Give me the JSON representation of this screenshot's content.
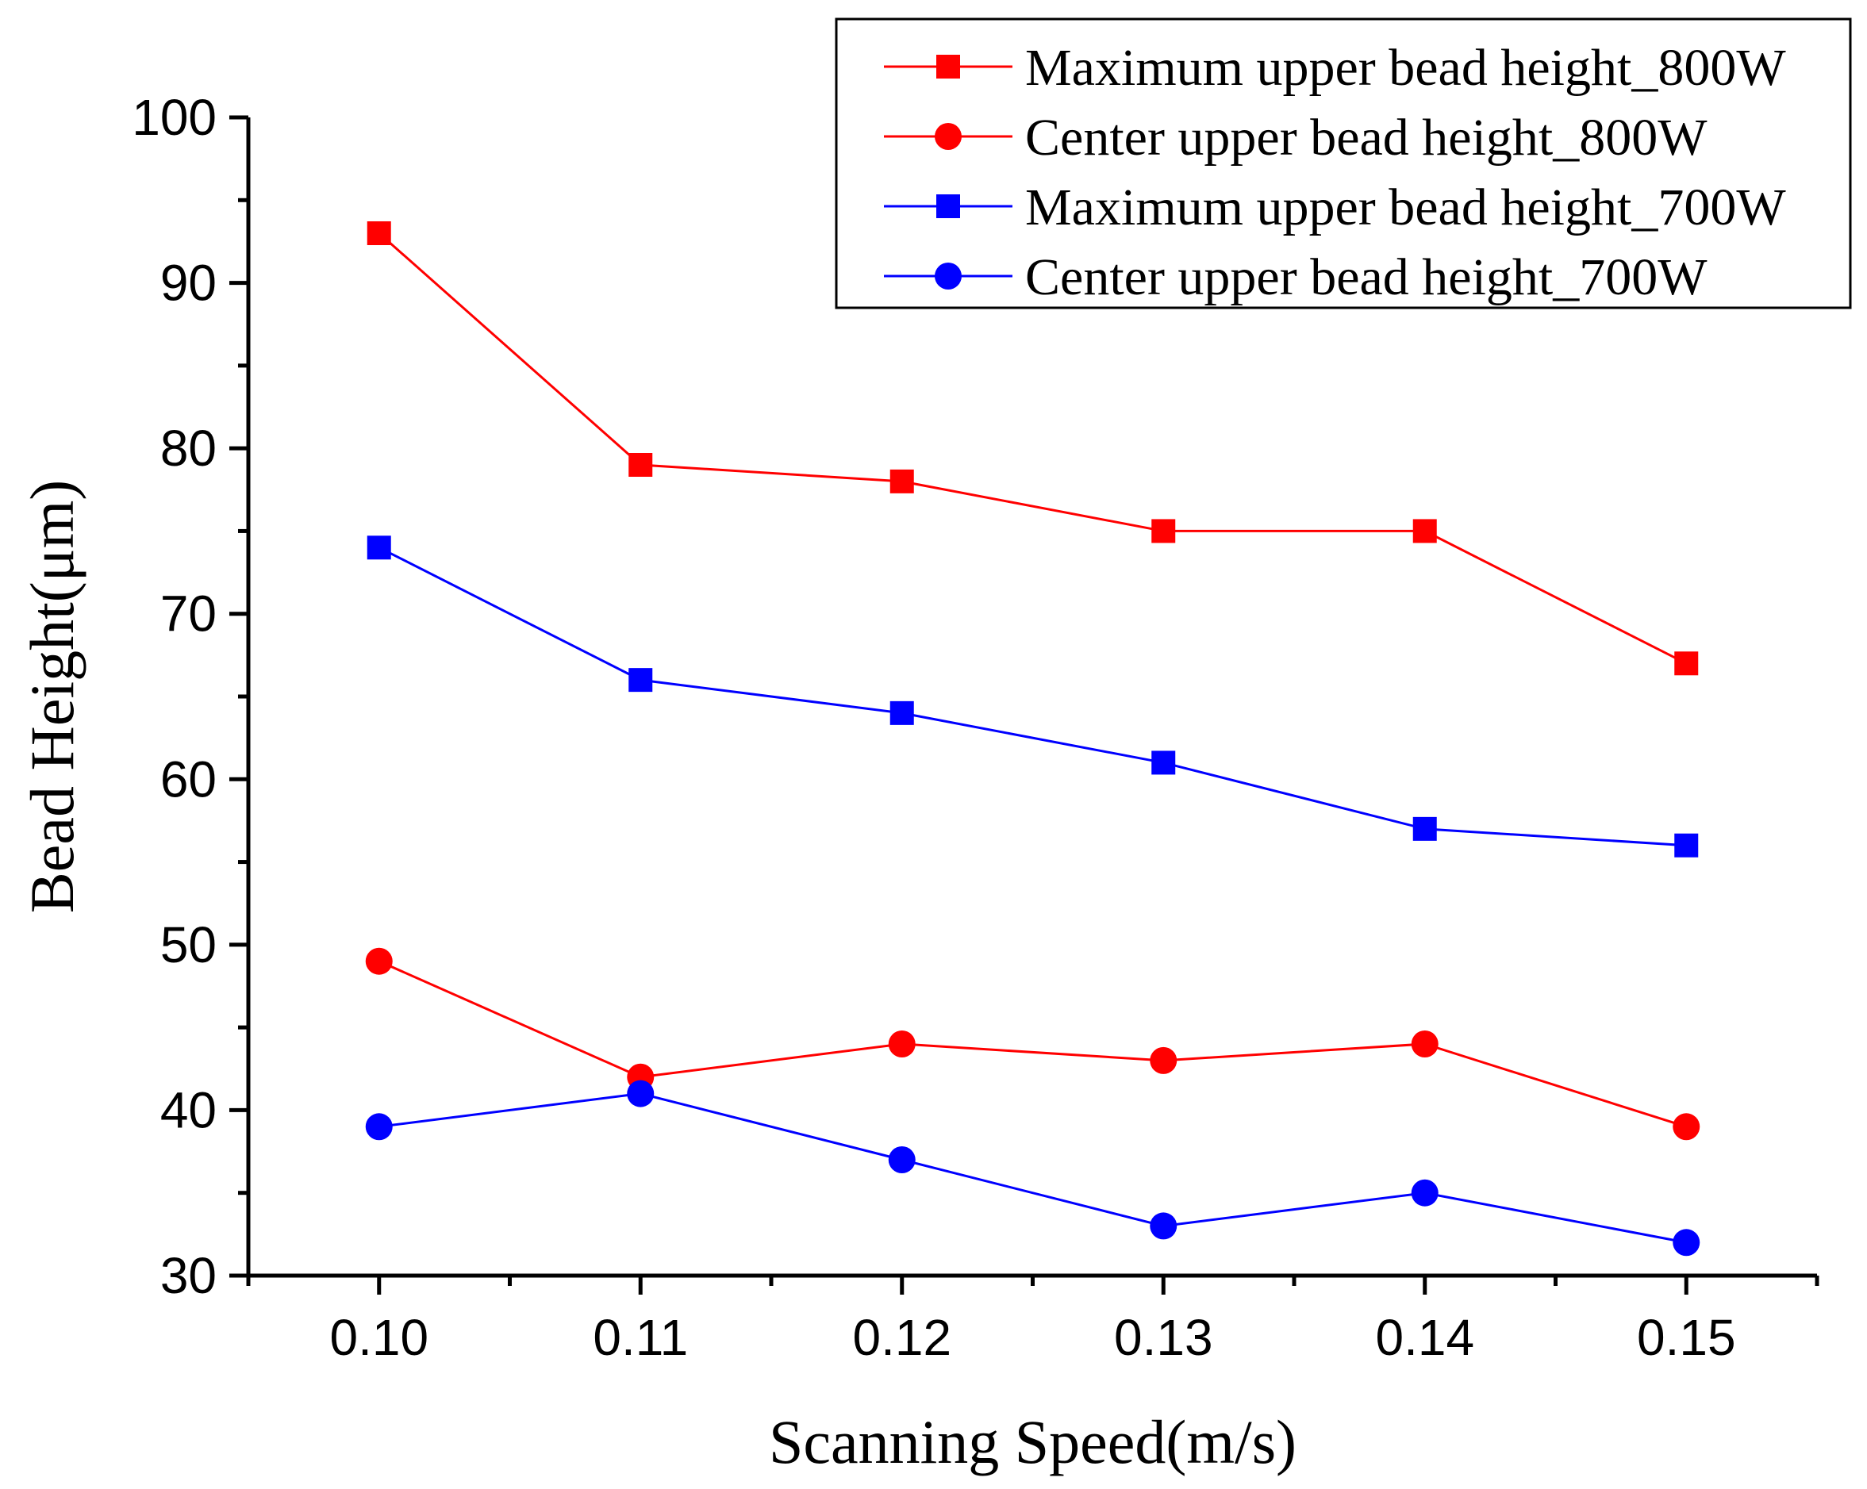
{
  "chart_data": {
    "type": "line",
    "title": "",
    "xlabel": "Scanning Speed(m/s)",
    "ylabel": "Bead Height(μm)",
    "x": [
      0.1,
      0.11,
      0.12,
      0.13,
      0.14,
      0.15
    ],
    "x_tick_labels": [
      "0.10",
      "0.11",
      "0.12",
      "0.13",
      "0.14",
      "0.15"
    ],
    "y_tick_labels": [
      "30",
      "40",
      "50",
      "60",
      "70",
      "80",
      "90",
      "100"
    ],
    "xlim": [
      0.095,
      0.155
    ],
    "ylim": [
      30,
      100
    ],
    "legend_position": "top-right",
    "series": [
      {
        "name": "Maximum upper bead height_800W",
        "values": [
          93,
          79,
          78,
          75,
          75,
          67
        ],
        "color": "#ff0000",
        "marker": "square"
      },
      {
        "name": "Center upper bead height_800W",
        "values": [
          49,
          42,
          44,
          43,
          44,
          39
        ],
        "color": "#ff0000",
        "marker": "circle"
      },
      {
        "name": "Maximum upper bead height_700W",
        "values": [
          74,
          66,
          64,
          61,
          57,
          56
        ],
        "color": "#0000ff",
        "marker": "square"
      },
      {
        "name": "Center upper bead height_700W",
        "values": [
          39,
          41,
          37,
          33,
          35,
          32
        ],
        "color": "#0000ff",
        "marker": "circle"
      }
    ]
  }
}
